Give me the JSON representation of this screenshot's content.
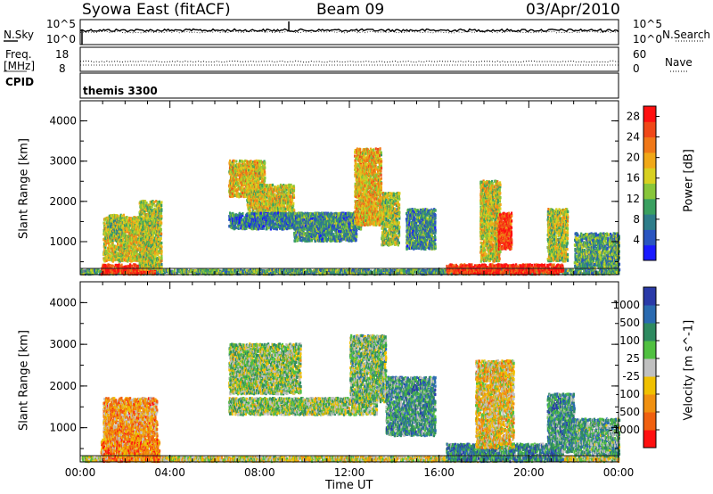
{
  "header": {
    "station": "Syowa East (fitACF)",
    "beam": "Beam 09",
    "date": "03/Apr/2010"
  },
  "panels": {
    "noise": {
      "left_label": "N.Sky",
      "right_label": "N.Search",
      "left_ticks": [
        "10^5",
        "10^0"
      ],
      "right_ticks": [
        "10^5",
        "10^0"
      ]
    },
    "freq": {
      "left_label_1": "Freq.",
      "left_label_2": "[MHz]",
      "right_label": "Nave",
      "left_ticks": [
        "18",
        "8"
      ],
      "right_ticks": [
        "60",
        "0"
      ]
    },
    "cpid": {
      "label": "CPID",
      "value": "themis 3300"
    }
  },
  "chart_data": [
    {
      "type": "heatmap",
      "name": "power",
      "ylabel": "Slant Range [km]",
      "xlabel": "",
      "xlim": [
        0,
        24
      ],
      "ylim": [
        180,
        4500
      ],
      "y_ticks": [
        "1000",
        "2000",
        "3000",
        "4000"
      ],
      "colorbar": {
        "label": "Power [dB]",
        "ticks": [
          "4",
          "8",
          "12",
          "16",
          "20",
          "24",
          "28"
        ],
        "range": [
          0,
          30
        ],
        "colors": [
          "#1a1aff",
          "#2a55c0",
          "#2e7d8a",
          "#3aa060",
          "#88c63a",
          "#d8d020",
          "#f0a818",
          "#f07818",
          "#f04818",
          "#ff1010"
        ]
      },
      "regions": [
        {
          "t": [
            0.0,
            24.0
          ],
          "r": [
            180,
            300
          ],
          "level": 0.35
        },
        {
          "t": [
            0.9,
            3.3
          ],
          "r": [
            180,
            420
          ],
          "level": 0.92
        },
        {
          "t": [
            1.0,
            3.2
          ],
          "r": [
            500,
            1600
          ],
          "level": 0.55
        },
        {
          "t": [
            1.2,
            1.9
          ],
          "r": [
            1100,
            1650
          ],
          "level": 0.45
        },
        {
          "t": [
            2.6,
            3.6
          ],
          "r": [
            300,
            2000
          ],
          "level": 0.5
        },
        {
          "t": [
            6.6,
            8.2
          ],
          "r": [
            2100,
            3000
          ],
          "level": 0.6
        },
        {
          "t": [
            7.4,
            9.5
          ],
          "r": [
            1500,
            2400
          ],
          "level": 0.55
        },
        {
          "t": [
            6.6,
            12.5
          ],
          "r": [
            1300,
            1700
          ],
          "level": 0.25
        },
        {
          "t": [
            9.5,
            12.3
          ],
          "r": [
            1000,
            1700
          ],
          "level": 0.3
        },
        {
          "t": [
            12.2,
            13.4
          ],
          "r": [
            1400,
            3300
          ],
          "level": 0.62
        },
        {
          "t": [
            13.4,
            14.2
          ],
          "r": [
            900,
            2200
          ],
          "level": 0.5
        },
        {
          "t": [
            14.5,
            15.8
          ],
          "r": [
            800,
            1800
          ],
          "level": 0.3
        },
        {
          "t": [
            16.3,
            21.5
          ],
          "r": [
            180,
            420
          ],
          "level": 0.93
        },
        {
          "t": [
            17.8,
            18.7
          ],
          "r": [
            500,
            2500
          ],
          "level": 0.55
        },
        {
          "t": [
            18.6,
            19.2
          ],
          "r": [
            800,
            1700
          ],
          "level": 0.88
        },
        {
          "t": [
            20.8,
            21.7
          ],
          "r": [
            500,
            1800
          ],
          "level": 0.5
        },
        {
          "t": [
            22.0,
            24.0
          ],
          "r": [
            300,
            1200
          ],
          "level": 0.35
        }
      ]
    },
    {
      "type": "heatmap",
      "name": "velocity",
      "ylabel": "Slant Range [km]",
      "xlabel": "Time UT",
      "xlim": [
        0,
        24
      ],
      "ylim": [
        180,
        4500
      ],
      "x_ticks": [
        "00:00",
        "04:00",
        "08:00",
        "12:00",
        "16:00",
        "20:00",
        "00:00"
      ],
      "y_ticks": [
        "1000",
        "2000",
        "3000",
        "4000"
      ],
      "colorbar": {
        "label": "Velocity [m s^-1]",
        "ticks": [
          "1000",
          "500",
          "100",
          "25",
          "-25",
          "-100",
          "-500",
          "-1000"
        ],
        "colors": [
          "#2a3aa8",
          "#2a6ab0",
          "#2e8a60",
          "#50c040",
          "#c0c0c0",
          "#f0c000",
          "#f09010",
          "#f06010",
          "#ff1010"
        ]
      },
      "regions": [
        {
          "t": [
            0.0,
            24.0
          ],
          "r": [
            180,
            300
          ],
          "level": 0.55
        },
        {
          "t": [
            0.9,
            3.5
          ],
          "r": [
            180,
            700
          ],
          "level": 0.75
        },
        {
          "t": [
            1.0,
            3.4
          ],
          "r": [
            700,
            1700
          ],
          "level": 0.7
        },
        {
          "t": [
            6.6,
            9.8
          ],
          "r": [
            1800,
            3000
          ],
          "level": 0.45
        },
        {
          "t": [
            6.6,
            13.2
          ],
          "r": [
            1300,
            1700
          ],
          "level": 0.45
        },
        {
          "t": [
            12.0,
            13.6
          ],
          "r": [
            1600,
            3200
          ],
          "level": 0.42
        },
        {
          "t": [
            13.6,
            15.8
          ],
          "r": [
            800,
            2200
          ],
          "level": 0.3
        },
        {
          "t": [
            16.3,
            21.5
          ],
          "r": [
            180,
            600
          ],
          "level": 0.25
        },
        {
          "t": [
            17.6,
            19.3
          ],
          "r": [
            500,
            2600
          ],
          "level": 0.6
        },
        {
          "t": [
            20.8,
            22.0
          ],
          "r": [
            400,
            1800
          ],
          "level": 0.3
        },
        {
          "t": [
            22.0,
            24.0
          ],
          "r": [
            300,
            1200
          ],
          "level": 0.35
        }
      ]
    }
  ]
}
